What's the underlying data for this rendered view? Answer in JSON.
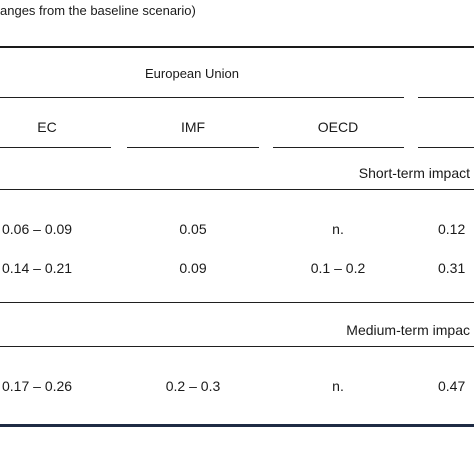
{
  "caption": "anges from the baseline scenario)",
  "table": {
    "group_header": "European Union",
    "columns": [
      "EC",
      "IMF",
      "OECD"
    ],
    "sections": [
      {
        "label": "Short-term impact",
        "rows": [
          [
            "0.06 – 0.09",
            "0.05",
            "n.",
            "0.12"
          ],
          [
            "0.14 – 0.21",
            "0.09",
            "0.1 – 0.2",
            "0.31"
          ]
        ]
      },
      {
        "label": "Medium-term impac",
        "rows": [
          [
            "0.17 – 0.26",
            "0.2 – 0.3",
            "n.",
            "0.47"
          ]
        ]
      }
    ]
  },
  "colors": {
    "text": "#1a1a1a",
    "bottom_rule": "#1f2b44"
  }
}
